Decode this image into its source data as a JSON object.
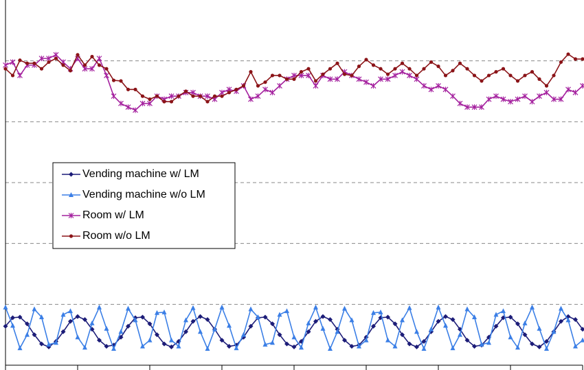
{
  "chart_data": {
    "type": "line",
    "x": [
      0,
      1,
      2,
      3,
      4,
      5,
      6,
      7,
      8,
      9,
      10,
      11,
      12,
      13,
      14,
      15,
      16,
      17,
      18,
      19,
      20,
      21,
      22,
      23,
      24,
      25,
      26,
      27,
      28,
      29,
      30,
      31,
      32,
      33,
      34,
      35,
      36,
      37,
      38,
      39,
      40,
      41,
      42,
      43,
      44,
      45,
      46,
      47,
      48,
      49,
      50,
      51,
      52,
      53,
      54,
      55,
      56,
      57,
      58,
      59,
      60,
      61,
      62,
      63,
      64,
      65,
      66,
      67,
      68,
      69,
      70,
      71,
      72,
      73,
      74,
      75,
      76,
      77,
      78,
      79,
      80
    ],
    "xlim": [
      0,
      80
    ],
    "xticks": [
      0,
      10,
      20,
      30,
      40,
      50,
      60,
      70,
      80
    ],
    "ylim": [
      0,
      6
    ],
    "yticks": [
      1,
      2,
      3,
      4,
      5
    ],
    "grid": true,
    "legend": "left",
    "series": [
      {
        "name": "Vending machine w/ LM",
        "color": "#1c1c78",
        "marker": "diamond",
        "values": [
          0.64,
          0.78,
          0.79,
          0.68,
          0.5,
          0.35,
          0.3,
          0.39,
          0.55,
          0.72,
          0.8,
          0.75,
          0.59,
          0.41,
          0.31,
          0.33,
          0.46,
          0.64,
          0.78,
          0.79,
          0.68,
          0.5,
          0.35,
          0.3,
          0.39,
          0.55,
          0.72,
          0.8,
          0.75,
          0.59,
          0.41,
          0.31,
          0.33,
          0.46,
          0.64,
          0.78,
          0.79,
          0.68,
          0.5,
          0.35,
          0.3,
          0.39,
          0.55,
          0.72,
          0.8,
          0.75,
          0.59,
          0.41,
          0.31,
          0.33,
          0.46,
          0.64,
          0.78,
          0.79,
          0.68,
          0.5,
          0.35,
          0.3,
          0.39,
          0.55,
          0.72,
          0.8,
          0.75,
          0.59,
          0.41,
          0.31,
          0.33,
          0.46,
          0.64,
          0.78,
          0.79,
          0.68,
          0.5,
          0.35,
          0.3,
          0.39,
          0.55,
          0.72,
          0.8,
          0.75,
          0.59
        ]
      },
      {
        "name": "Vending machine w/o LM",
        "color": "#3b7fe6",
        "marker": "triangle",
        "values": [
          0.95,
          0.65,
          0.28,
          0.5,
          0.92,
          0.79,
          0.34,
          0.37,
          0.83,
          0.89,
          0.46,
          0.29,
          0.69,
          0.95,
          0.6,
          0.27,
          0.55,
          0.93,
          0.74,
          0.31,
          0.41,
          0.86,
          0.87,
          0.41,
          0.31,
          0.74,
          0.94,
          0.55,
          0.27,
          0.59,
          0.95,
          0.65,
          0.28,
          0.5,
          0.92,
          0.79,
          0.34,
          0.37,
          0.83,
          0.89,
          0.46,
          0.29,
          0.69,
          0.95,
          0.6,
          0.27,
          0.55,
          0.93,
          0.74,
          0.31,
          0.41,
          0.86,
          0.87,
          0.41,
          0.31,
          0.74,
          0.94,
          0.55,
          0.27,
          0.59,
          0.95,
          0.65,
          0.28,
          0.5,
          0.92,
          0.79,
          0.34,
          0.37,
          0.83,
          0.89,
          0.46,
          0.29,
          0.69,
          0.95,
          0.6,
          0.27,
          0.55,
          0.93,
          0.74,
          0.31,
          0.41
        ]
      },
      {
        "name": "Room w/ LM",
        "color": "#a4209e",
        "marker": "star",
        "values": [
          4.93,
          4.98,
          4.76,
          4.93,
          4.93,
          5.04,
          5.04,
          5.1,
          4.98,
          4.87,
          5.04,
          4.87,
          4.87,
          5.04,
          4.76,
          4.42,
          4.3,
          4.24,
          4.19,
          4.3,
          4.3,
          4.42,
          4.37,
          4.42,
          4.42,
          4.48,
          4.48,
          4.42,
          4.42,
          4.37,
          4.48,
          4.53,
          4.5,
          4.59,
          4.37,
          4.42,
          4.53,
          4.48,
          4.59,
          4.7,
          4.76,
          4.76,
          4.76,
          4.59,
          4.76,
          4.7,
          4.7,
          4.82,
          4.76,
          4.7,
          4.65,
          4.59,
          4.7,
          4.7,
          4.76,
          4.82,
          4.76,
          4.7,
          4.59,
          4.53,
          4.59,
          4.53,
          4.42,
          4.3,
          4.24,
          4.24,
          4.24,
          4.37,
          4.42,
          4.37,
          4.33,
          4.37,
          4.42,
          4.33,
          4.42,
          4.48,
          4.37,
          4.37,
          4.53,
          4.48,
          4.59
        ]
      },
      {
        "name": "Room w/o LM",
        "color": "#8b1418",
        "marker": "circle",
        "values": [
          4.87,
          4.76,
          5.01,
          4.96,
          4.96,
          4.87,
          4.98,
          5.04,
          4.93,
          4.84,
          5.1,
          4.93,
          5.07,
          4.93,
          4.87,
          4.68,
          4.67,
          4.53,
          4.53,
          4.42,
          4.37,
          4.42,
          4.33,
          4.33,
          4.42,
          4.5,
          4.42,
          4.42,
          4.33,
          4.42,
          4.42,
          4.48,
          4.53,
          4.59,
          4.82,
          4.59,
          4.65,
          4.76,
          4.76,
          4.7,
          4.7,
          4.82,
          4.87,
          4.67,
          4.78,
          4.87,
          4.96,
          4.78,
          4.76,
          4.91,
          5.02,
          4.93,
          4.87,
          4.78,
          4.87,
          4.96,
          4.87,
          4.76,
          4.87,
          4.98,
          4.91,
          4.76,
          4.84,
          4.96,
          4.87,
          4.76,
          4.67,
          4.76,
          4.82,
          4.87,
          4.76,
          4.67,
          4.76,
          4.82,
          4.7,
          4.59,
          4.76,
          4.98,
          5.11,
          5.03,
          5.03
        ]
      }
    ]
  }
}
